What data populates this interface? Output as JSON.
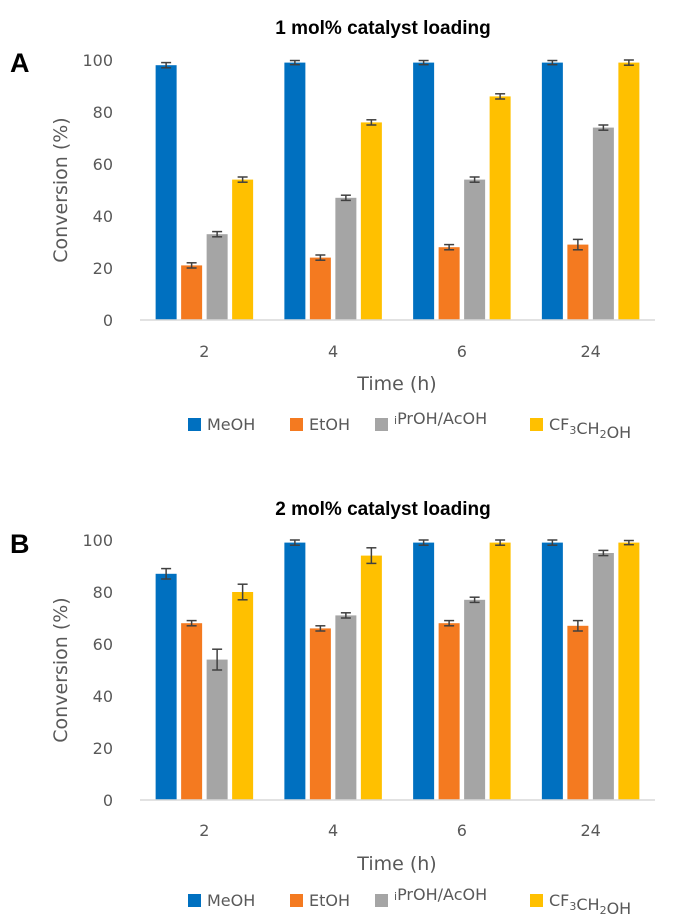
{
  "colors": {
    "MeOH": "#0070C0",
    "EtOH": "#F47A20",
    "iPrOH/AcOH": "#A5A5A5",
    "CF3CH2OH": "#FFC000",
    "axis": "#D9D9D9",
    "errorbar": "#404040"
  },
  "legend": [
    {
      "key": "MeOH",
      "parts": [
        {
          "t": "MeOH"
        }
      ]
    },
    {
      "key": "EtOH",
      "parts": [
        {
          "t": "EtOH"
        }
      ]
    },
    {
      "key": "iPrOH/AcOH",
      "parts": [
        {
          "t": "i",
          "s": "sup"
        },
        {
          "t": "PrOH/AcOH"
        }
      ]
    },
    {
      "key": "CF3CH2OH",
      "parts": [
        {
          "t": "CF"
        },
        {
          "t": "3",
          "s": "sub"
        },
        {
          "t": "CH"
        },
        {
          "t": "2",
          "s": "sub"
        },
        {
          "t": "OH"
        }
      ]
    }
  ],
  "chart_data": [
    {
      "type": "bar",
      "panel": "A",
      "title": "1 mol% catalyst loading",
      "xlabel": "Time (h)",
      "ylabel": "Conversion (%)",
      "ylim": [
        0,
        100
      ],
      "yticks": [
        0,
        20,
        40,
        60,
        80,
        100
      ],
      "grid": false,
      "legend_position": "bottom",
      "categories": [
        "2",
        "4",
        "6",
        "24"
      ],
      "series": [
        {
          "name": "MeOH",
          "values": [
            98,
            99,
            99,
            99
          ],
          "errors": [
            1,
            0.8,
            0.8,
            0.8
          ]
        },
        {
          "name": "EtOH",
          "values": [
            21,
            24,
            28,
            29
          ],
          "errors": [
            1,
            1,
            1,
            2
          ]
        },
        {
          "name": "iPrOH/AcOH",
          "values": [
            33,
            47,
            54,
            74
          ],
          "errors": [
            1,
            1,
            1,
            1
          ]
        },
        {
          "name": "CF3CH2OH",
          "values": [
            54,
            76,
            86,
            99
          ],
          "errors": [
            1,
            1,
            1,
            1
          ]
        }
      ]
    },
    {
      "type": "bar",
      "panel": "B",
      "title": "2 mol% catalyst loading",
      "xlabel": "Time (h)",
      "ylabel": "Conversion (%)",
      "ylim": [
        0,
        100
      ],
      "yticks": [
        0,
        20,
        40,
        60,
        80,
        100
      ],
      "grid": false,
      "legend_position": "bottom",
      "categories": [
        "2",
        "4",
        "6",
        "24"
      ],
      "series": [
        {
          "name": "MeOH",
          "values": [
            87,
            99,
            99,
            99
          ],
          "errors": [
            2,
            1,
            1,
            1
          ]
        },
        {
          "name": "EtOH",
          "values": [
            68,
            66,
            68,
            67
          ],
          "errors": [
            1,
            1,
            1,
            2
          ]
        },
        {
          "name": "iPrOH/AcOH",
          "values": [
            54,
            71,
            77,
            95
          ],
          "errors": [
            4,
            1,
            1,
            1
          ]
        },
        {
          "name": "CF3CH2OH",
          "values": [
            80,
            94,
            99,
            99
          ],
          "errors": [
            3,
            3,
            1,
            0.8
          ]
        }
      ]
    }
  ]
}
